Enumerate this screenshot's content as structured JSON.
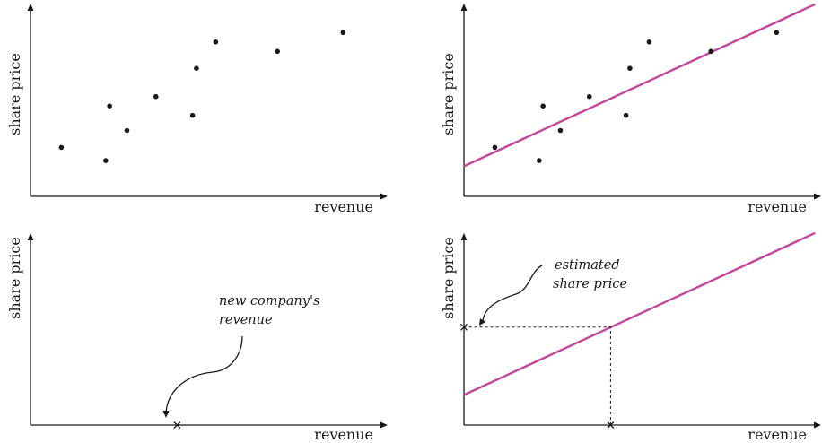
{
  "chart_data": [
    {
      "type": "scatter",
      "xlabel": "revenue",
      "ylabel": "share price",
      "points": [
        {
          "x": 0.08,
          "y": 0.26
        },
        {
          "x": 0.195,
          "y": 0.19
        },
        {
          "x": 0.205,
          "y": 0.48
        },
        {
          "x": 0.25,
          "y": 0.35
        },
        {
          "x": 0.325,
          "y": 0.53
        },
        {
          "x": 0.42,
          "y": 0.43
        },
        {
          "x": 0.43,
          "y": 0.68
        },
        {
          "x": 0.48,
          "y": 0.82
        },
        {
          "x": 0.64,
          "y": 0.77
        },
        {
          "x": 0.81,
          "y": 0.87
        }
      ]
    },
    {
      "type": "scatter",
      "xlabel": "revenue",
      "ylabel": "share price",
      "points": [
        {
          "x": 0.08,
          "y": 0.26
        },
        {
          "x": 0.195,
          "y": 0.19
        },
        {
          "x": 0.205,
          "y": 0.48
        },
        {
          "x": 0.25,
          "y": 0.35
        },
        {
          "x": 0.325,
          "y": 0.53
        },
        {
          "x": 0.42,
          "y": 0.43
        },
        {
          "x": 0.43,
          "y": 0.68
        },
        {
          "x": 0.48,
          "y": 0.82
        },
        {
          "x": 0.64,
          "y": 0.77
        },
        {
          "x": 0.81,
          "y": 0.87
        }
      ],
      "fit_line": {
        "x": [
          0,
          0.91
        ],
        "y": [
          0.16,
          1.02
        ],
        "color": "#c2479b"
      }
    },
    {
      "type": "scatter",
      "xlabel": "revenue",
      "ylabel": "share price",
      "marker": {
        "x": 0.38,
        "y": 0
      },
      "annotation": [
        "new company's",
        "revenue"
      ]
    },
    {
      "type": "line",
      "xlabel": "revenue",
      "ylabel": "share price",
      "fit_line": {
        "x": [
          0,
          0.91
        ],
        "y": [
          0.16,
          1.02
        ],
        "color": "#c2479b"
      },
      "marker_x": {
        "x": 0.38,
        "y": 0
      },
      "marker_y": {
        "x": 0,
        "y": 0.52
      },
      "annotation": [
        "estimated",
        "share price"
      ]
    }
  ]
}
